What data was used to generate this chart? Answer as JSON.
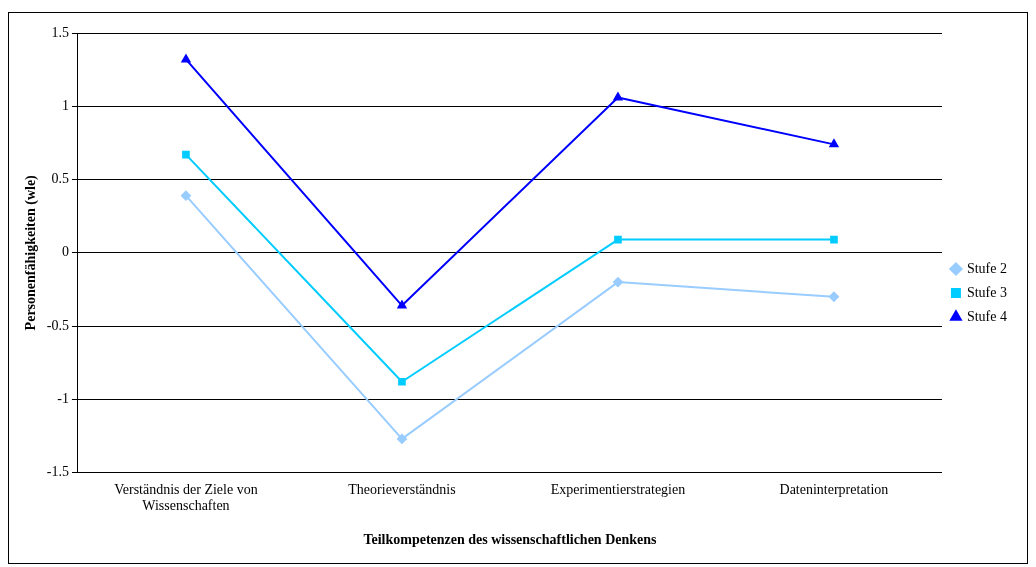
{
  "chart_data": {
    "type": "line",
    "xlabel": "Teilkompetenzen des wissenschaftlichen Denkens",
    "ylabel": "Personenfähigkeiten (wle)",
    "categories": [
      "Verständnis der Ziele von Wissenschaften",
      "Theorieverständnis",
      "Experimentierstrategien",
      "Dateninterpretation"
    ],
    "series": [
      {
        "name": "Stufe 2",
        "color": "#99ccff",
        "marker": "diamond",
        "values": [
          0.39,
          -1.27,
          -0.2,
          -0.3
        ]
      },
      {
        "name": "Stufe 3",
        "color": "#00ccff",
        "marker": "square",
        "values": [
          0.67,
          -0.88,
          0.09,
          0.09
        ]
      },
      {
        "name": "Stufe 4",
        "color": "#0000ff",
        "marker": "triangle",
        "values": [
          1.32,
          -0.36,
          1.06,
          0.74
        ]
      }
    ],
    "ylim": [
      -1.5,
      1.5
    ],
    "yticks": [
      -1.5,
      -1,
      -0.5,
      0,
      0.5,
      1,
      1.5
    ],
    "grid": "y",
    "legend": "right",
    "line_style": "solid"
  }
}
